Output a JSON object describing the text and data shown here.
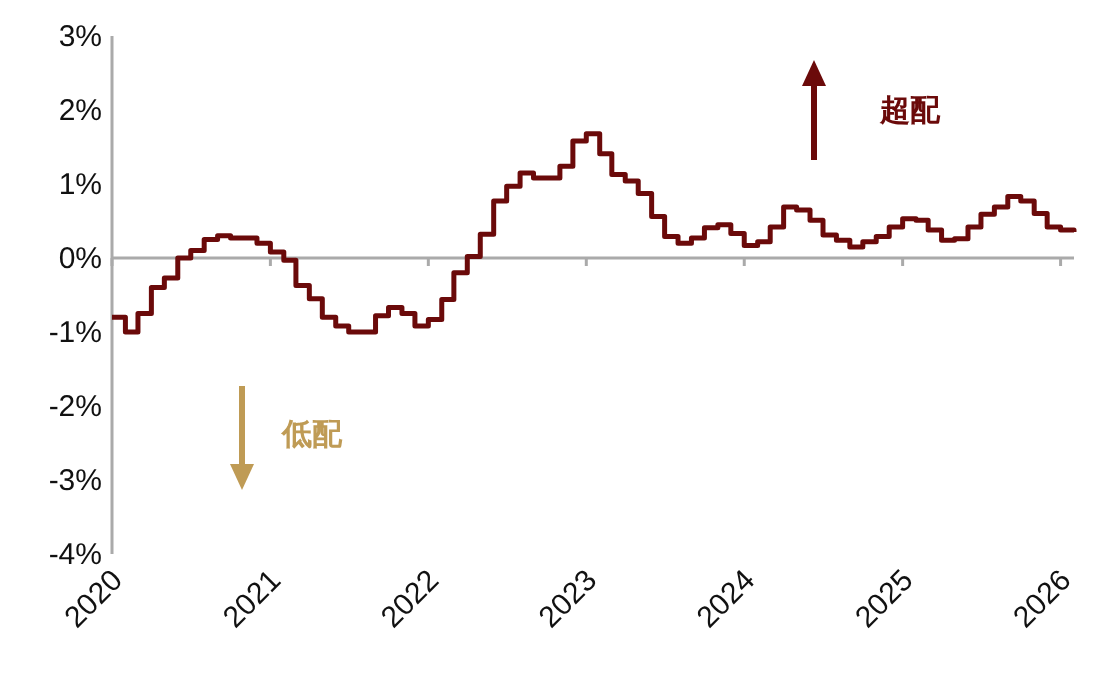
{
  "chart_data": {
    "type": "step",
    "x": [
      "2020-01",
      "2020-02",
      "2020-03",
      "2020-04",
      "2020-05",
      "2020-06",
      "2020-07",
      "2020-08",
      "2020-09",
      "2020-10",
      "2020-11",
      "2020-12",
      "2021-01",
      "2021-02",
      "2021-03",
      "2021-04",
      "2021-05",
      "2021-06",
      "2021-07",
      "2021-08",
      "2021-09",
      "2021-10",
      "2021-11",
      "2021-12",
      "2022-01",
      "2022-02",
      "2022-03",
      "2022-04",
      "2022-05",
      "2022-06",
      "2022-07",
      "2022-08",
      "2022-09",
      "2022-10",
      "2022-11",
      "2022-12",
      "2023-01",
      "2023-02",
      "2023-03",
      "2023-04",
      "2023-05",
      "2023-06",
      "2023-07",
      "2023-08",
      "2023-09",
      "2023-10",
      "2023-11",
      "2023-12",
      "2024-01",
      "2024-02",
      "2024-03",
      "2024-04",
      "2024-05",
      "2024-06",
      "2024-07",
      "2024-08",
      "2024-09",
      "2024-10",
      "2024-11",
      "2024-12",
      "2025-01",
      "2025-02",
      "2025-03",
      "2025-04",
      "2025-05",
      "2025-06",
      "2025-07",
      "2025-08",
      "2025-09",
      "2025-10",
      "2025-11",
      "2025-12",
      "2026-01",
      "2026-02"
    ],
    "series": [
      {
        "color": "#6b0a0a",
        "values": [
          -0.8,
          -1.0,
          -0.75,
          -0.4,
          -0.27,
          0.0,
          0.1,
          0.25,
          0.3,
          0.27,
          0.27,
          0.2,
          0.08,
          -0.03,
          -0.37,
          -0.55,
          -0.8,
          -0.92,
          -1.0,
          -1.0,
          -0.78,
          -0.67,
          -0.75,
          -0.92,
          -0.83,
          -0.56,
          -0.2,
          0.02,
          0.32,
          0.77,
          0.97,
          1.15,
          1.08,
          1.08,
          1.24,
          1.58,
          1.68,
          1.41,
          1.13,
          1.04,
          0.87,
          0.56,
          0.29,
          0.2,
          0.27,
          0.41,
          0.45,
          0.33,
          0.17,
          0.22,
          0.42,
          0.69,
          0.65,
          0.51,
          0.31,
          0.24,
          0.15,
          0.22,
          0.29,
          0.42,
          0.53,
          0.51,
          0.38,
          0.24,
          0.26,
          0.42,
          0.59,
          0.69,
          0.83,
          0.77,
          0.6,
          0.42,
          0.38,
          0.35
        ]
      }
    ],
    "xlim": [
      "2020-01",
      "2026-02"
    ],
    "xticks": [
      {
        "value": "2020-01",
        "label": "2020"
      },
      {
        "value": "2021-01",
        "label": "2021"
      },
      {
        "value": "2022-01",
        "label": "2022"
      },
      {
        "value": "2023-01",
        "label": "2023"
      },
      {
        "value": "2024-01",
        "label": "2024"
      },
      {
        "value": "2025-01",
        "label": "2025"
      },
      {
        "value": "2026-01",
        "label": "2026"
      }
    ],
    "ylim": [
      -4,
      3
    ],
    "yticks": [
      {
        "value": -4,
        "label": "-4%"
      },
      {
        "value": -3,
        "label": "-3%"
      },
      {
        "value": -2,
        "label": "-2%"
      },
      {
        "value": -1,
        "label": "-1%"
      },
      {
        "value": 0,
        "label": "0%"
      },
      {
        "value": 1,
        "label": "1%"
      },
      {
        "value": 2,
        "label": "2%"
      },
      {
        "value": 3,
        "label": "3%"
      }
    ],
    "annotations": [
      "超配",
      "低配"
    ]
  }
}
